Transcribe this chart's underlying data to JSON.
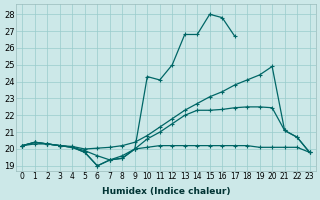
{
  "xlabel": "Humidex (Indice chaleur)",
  "bg_color": "#cce8e8",
  "grid_color": "#99cccc",
  "line_color": "#006666",
  "xlim": [
    -0.5,
    23.5
  ],
  "ylim": [
    18.7,
    28.6
  ],
  "yticks": [
    19,
    20,
    21,
    22,
    23,
    24,
    25,
    26,
    27,
    28
  ],
  "xticks": [
    0,
    1,
    2,
    3,
    4,
    5,
    6,
    7,
    8,
    9,
    10,
    11,
    12,
    13,
    14,
    15,
    16,
    17,
    18,
    19,
    20,
    21,
    22,
    23
  ],
  "line_peak": {
    "x": [
      0,
      1,
      2,
      3,
      4,
      5,
      6,
      7,
      8,
      9,
      10,
      11,
      12,
      13,
      14,
      15,
      16,
      17,
      18,
      19,
      20,
      21,
      22,
      23
    ],
    "y": [
      20.2,
      20.4,
      20.3,
      20.2,
      20.1,
      19.8,
      19.0,
      19.35,
      19.45,
      20.0,
      24.3,
      24.1,
      25.0,
      26.8,
      26.8,
      28.0,
      27.8,
      26.7,
      null,
      null,
      null,
      null,
      null,
      null
    ]
  },
  "line_diag": {
    "x": [
      0,
      1,
      2,
      3,
      4,
      5,
      6,
      7,
      8,
      9,
      10,
      11,
      12,
      13,
      14,
      15,
      16,
      17,
      18,
      19,
      20,
      21,
      22,
      23
    ],
    "y": [
      20.2,
      20.4,
      20.3,
      20.2,
      20.15,
      20.0,
      20.05,
      20.1,
      20.2,
      20.4,
      20.8,
      21.3,
      21.8,
      22.3,
      22.7,
      23.1,
      23.4,
      23.8,
      24.1,
      24.4,
      24.9,
      21.1,
      20.7,
      19.8
    ]
  },
  "line_flat": {
    "x": [
      0,
      1,
      2,
      3,
      4,
      5,
      6,
      7,
      8,
      9,
      10,
      11,
      12,
      13,
      14,
      15,
      16,
      17,
      18,
      19,
      20,
      21,
      22,
      23
    ],
    "y": [
      20.2,
      20.4,
      20.3,
      20.2,
      20.1,
      19.8,
      19.0,
      19.35,
      19.45,
      20.0,
      20.1,
      20.2,
      20.2,
      20.2,
      20.2,
      20.2,
      20.2,
      20.2,
      20.2,
      20.1,
      20.1,
      20.1,
      20.1,
      19.8
    ]
  },
  "line_rise": {
    "x": [
      0,
      1,
      2,
      3,
      4,
      5,
      6,
      7,
      8,
      9,
      10,
      11,
      12,
      13,
      14,
      15,
      16,
      17,
      18,
      19,
      20,
      21,
      22,
      23
    ],
    "y": [
      20.2,
      20.3,
      20.3,
      20.2,
      20.1,
      19.9,
      19.6,
      19.35,
      19.6,
      20.0,
      20.6,
      21.0,
      21.5,
      22.0,
      22.3,
      22.3,
      22.35,
      22.45,
      22.5,
      22.5,
      22.45,
      21.1,
      20.7,
      19.8
    ]
  }
}
